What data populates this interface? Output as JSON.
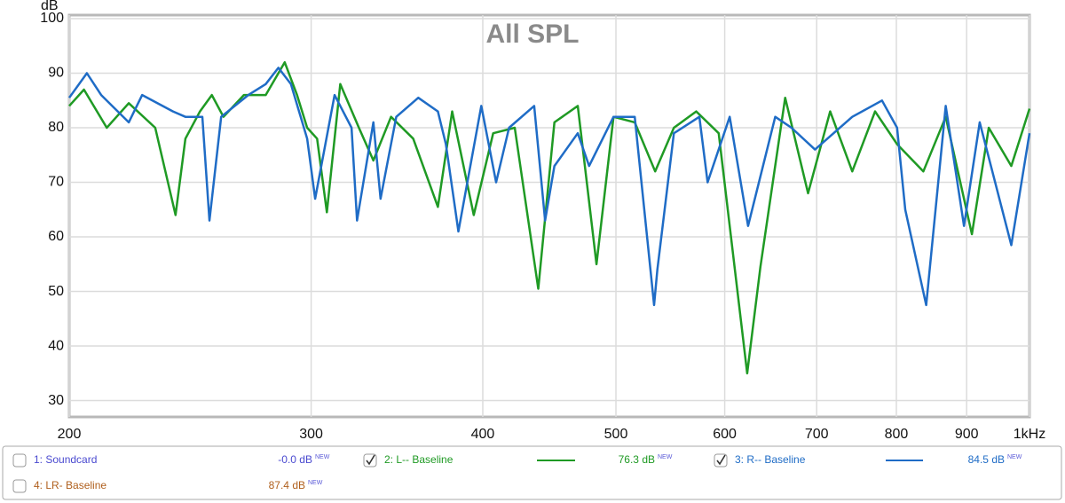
{
  "chart_data": {
    "type": "line",
    "title": "All SPL",
    "y_label": "dB",
    "xscale": "log",
    "grid": true,
    "xlim": [
      200,
      1000
    ],
    "ylim": [
      27,
      100
    ],
    "xticks": [
      200,
      300,
      400,
      500,
      600,
      700,
      800,
      900,
      {
        "value": 1000,
        "label": "1kHz"
      }
    ],
    "yticks": [
      30,
      40,
      50,
      60,
      70,
      80,
      90,
      100
    ],
    "series": [
      {
        "name": "1: Soundcard",
        "color": "#4a4ad0",
        "checked": false,
        "readout": "-0.0 dB",
        "badge": "NEW"
      },
      {
        "name": "2: L-- Baseline",
        "color": "#1f9a24",
        "checked": true,
        "readout": "76.3 dB",
        "badge": "NEW",
        "x": [
          200,
          205,
          213,
          221,
          231,
          239,
          243,
          249,
          254,
          259,
          268,
          278,
          287,
          293,
          298,
          303,
          308,
          315,
          325,
          333,
          343,
          356,
          371,
          380,
          394,
          407,
          422,
          439,
          451,
          469,
          484,
          498,
          516,
          534,
          551,
          572,
          594,
          623,
          637,
          664,
          690,
          716,
          743,
          772,
          801,
          837,
          869,
          908,
          934,
          970,
          1000
        ],
        "values": [
          84,
          87,
          80,
          84.5,
          80,
          64,
          78,
          83,
          86,
          82,
          86,
          86,
          92,
          86,
          80,
          78,
          64.5,
          88,
          80,
          74,
          82,
          78,
          65.5,
          83,
          64,
          79,
          80,
          50.5,
          81,
          84,
          55,
          82,
          81,
          72,
          80,
          83,
          79,
          35,
          54.5,
          85.5,
          68,
          83,
          72,
          83,
          77,
          72,
          82,
          60.5,
          80,
          73,
          83.5
        ]
      },
      {
        "name": "3: R-- Baseline",
        "color": "#1f6cc6",
        "checked": true,
        "readout": "84.5 dB",
        "badge": "NEW",
        "x": [
          200,
          206,
          211,
          221,
          226,
          238,
          243,
          250,
          253,
          258,
          270,
          278,
          284,
          290,
          298,
          302,
          312,
          321,
          324,
          333,
          337,
          346,
          359,
          371,
          376,
          382,
          384,
          399,
          409,
          418,
          436,
          444,
          451,
          469,
          478,
          498,
          516,
          533,
          536,
          551,
          575,
          583,
          605,
          624,
          653,
          671,
          698,
          743,
          781,
          801,
          812,
          841,
          869,
          896,
          920,
          970,
          1000
        ],
        "values": [
          85.5,
          90,
          86,
          81,
          86,
          83,
          82,
          82,
          63,
          82,
          86,
          88,
          91,
          88,
          78,
          67,
          86,
          80,
          63,
          81,
          67,
          82,
          85.5,
          83,
          77,
          65,
          61,
          84,
          70,
          80,
          84,
          63,
          73,
          79,
          73,
          82,
          82,
          47.5,
          54,
          79,
          82,
          70,
          82,
          62,
          82,
          80,
          76,
          82,
          85,
          80,
          65,
          47.5,
          84,
          62,
          81,
          58.5,
          79
        ]
      },
      {
        "name": "4: LR- Baseline",
        "color": "#b0601e",
        "checked": false,
        "readout": "87.4 dB",
        "badge": "NEW"
      }
    ]
  }
}
